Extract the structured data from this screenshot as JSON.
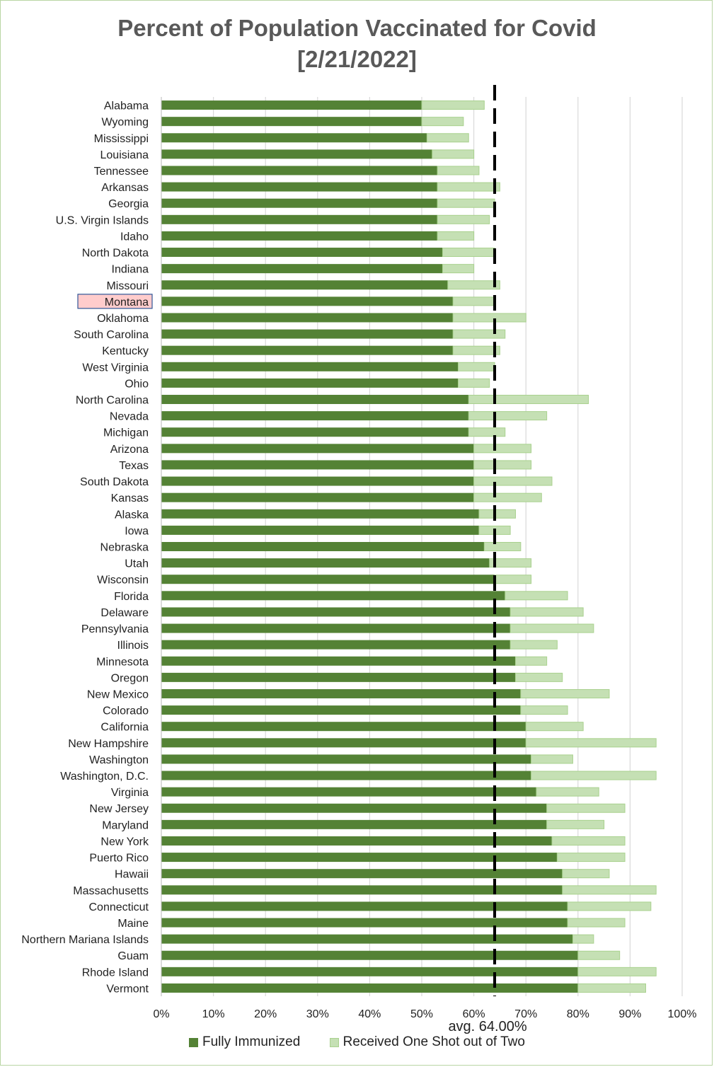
{
  "chart_data": {
    "type": "bar",
    "orientation": "horizontal",
    "stacked": true,
    "title": "Percent of Population Vaccinated for Covid",
    "subtitle": "[2/21/2022]",
    "categories": [
      "Alabama",
      "Wyoming",
      "Mississippi",
      "Louisiana",
      "Tennessee",
      "Arkansas",
      "Georgia",
      "U.S. Virgin Islands",
      "Idaho",
      "North Dakota",
      "Indiana",
      "Missouri",
      "Montana",
      "Oklahoma",
      "South Carolina",
      "Kentucky",
      "West Virginia",
      "Ohio",
      "North Carolina",
      "Nevada",
      "Michigan",
      "Arizona",
      "Texas",
      "South Dakota",
      "Kansas",
      "Alaska",
      "Iowa",
      "Nebraska",
      "Utah",
      "Wisconsin",
      "Florida",
      "Delaware",
      "Pennsylvania",
      "Illinois",
      "Minnesota",
      "Oregon",
      "New Mexico",
      "Colorado",
      "California",
      "New Hampshire",
      "Washington",
      "Washington, D.C.",
      "Virginia",
      "New Jersey",
      "Maryland",
      "New York",
      "Puerto Rico",
      "Hawaii",
      "Massachusetts",
      "Connecticut",
      "Maine",
      "Northern Mariana Islands",
      "Guam",
      "Rhode Island",
      "Vermont"
    ],
    "highlighted_category": "Montana",
    "series": [
      {
        "name": "Fully Immunized",
        "color": "#548235",
        "values": [
          50,
          50,
          51,
          52,
          53,
          53,
          53,
          53,
          53,
          54,
          54,
          55,
          56,
          56,
          56,
          56,
          57,
          57,
          59,
          59,
          59,
          60,
          60,
          60,
          60,
          61,
          61,
          62,
          63,
          64,
          66,
          67,
          67,
          67,
          68,
          68,
          69,
          69,
          70,
          70,
          71,
          71,
          72,
          74,
          74,
          75,
          76,
          77,
          77,
          78,
          78,
          79,
          80,
          80,
          80
        ]
      },
      {
        "name": "Received One Shot out of Two",
        "color": "#c5e0b4",
        "values": [
          12,
          8,
          8,
          8,
          8,
          12,
          11,
          10,
          7,
          10,
          6,
          10,
          8,
          14,
          10,
          9,
          7,
          6,
          23,
          15,
          7,
          11,
          11,
          15,
          13,
          7,
          6,
          7,
          8,
          7,
          12,
          14,
          16,
          9,
          6,
          9,
          17,
          9,
          11,
          25,
          8,
          24,
          12,
          15,
          11,
          14,
          13,
          9,
          18,
          16,
          11,
          4,
          8,
          15,
          13
        ]
      }
    ],
    "xlim": [
      0,
      100
    ],
    "x_ticks": [
      "0%",
      "10%",
      "20%",
      "30%",
      "40%",
      "50%",
      "60%",
      "70%",
      "80%",
      "90%",
      "100%"
    ],
    "reference_line": {
      "value": 64.0,
      "label": "avg. 64.00%",
      "style": "dashed",
      "color": "#000000"
    },
    "grid": "vertical",
    "legend_position": "bottom"
  },
  "colors": {
    "highlight_fill": "#ffcccc",
    "highlight_border": "#2f5597",
    "gridline": "#d9d9d9"
  }
}
